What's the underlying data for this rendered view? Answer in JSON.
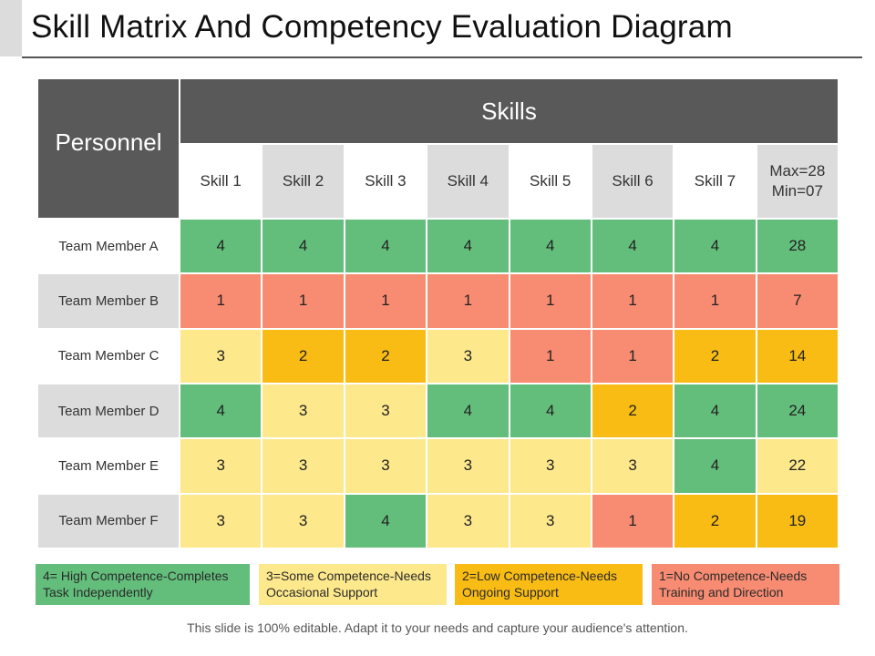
{
  "title": "Skill Matrix And Competency Evaluation Diagram",
  "headers": {
    "personnel": "Personnel",
    "skills": "Skills",
    "skill_columns": [
      "Skill 1",
      "Skill 2",
      "Skill 3",
      "Skill 4",
      "Skill 5",
      "Skill 6",
      "Skill 7"
    ],
    "total_max": "Max=28",
    "total_min": "Min=07"
  },
  "members": [
    {
      "name": "Team Member A",
      "scores": [
        4,
        4,
        4,
        4,
        4,
        4,
        4
      ],
      "total": 28
    },
    {
      "name": "Team Member B",
      "scores": [
        1,
        1,
        1,
        1,
        1,
        1,
        1
      ],
      "total": 7
    },
    {
      "name": "Team Member C",
      "scores": [
        3,
        2,
        2,
        3,
        1,
        1,
        2
      ],
      "total": 14
    },
    {
      "name": "Team Member D",
      "scores": [
        4,
        3,
        3,
        4,
        4,
        2,
        4
      ],
      "total": 24
    },
    {
      "name": "Team Member E",
      "scores": [
        3,
        3,
        3,
        3,
        3,
        3,
        4
      ],
      "total": 22
    },
    {
      "name": "Team Member F",
      "scores": [
        3,
        3,
        4,
        3,
        3,
        1,
        2
      ],
      "total": 19
    }
  ],
  "legend": [
    {
      "level": 4,
      "text": "4= High Competence-Completes Task Independently",
      "color": "#63be7b"
    },
    {
      "level": 3,
      "text": "3=Some Competence-Needs Occasional Support",
      "color": "#fde88b"
    },
    {
      "level": 2,
      "text": "2=Low Competence-Needs Ongoing Support",
      "color": "#f9bc15"
    },
    {
      "level": 1,
      "text": "1=No Competence-Needs Training and Direction",
      "color": "#f78c72"
    }
  ],
  "footer": "This slide is 100% editable. Adapt it to your needs and capture your audience's attention."
}
